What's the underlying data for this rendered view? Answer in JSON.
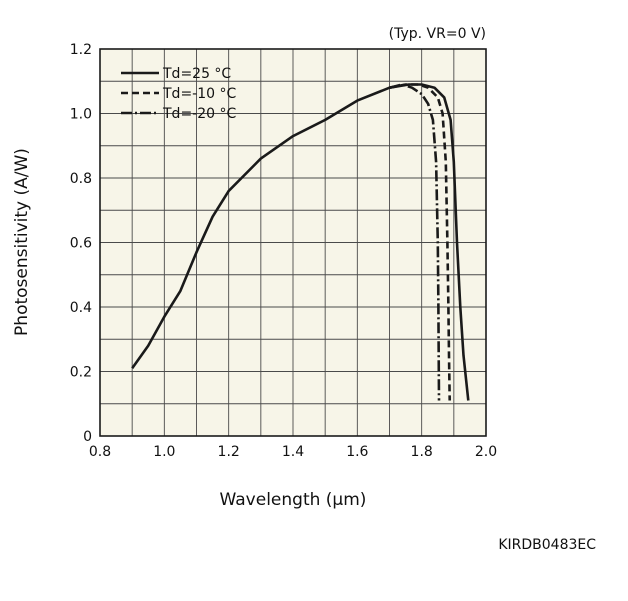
{
  "chart_data": {
    "type": "line",
    "condition_text": "(Typ. VR=0 V)",
    "xlabel": "Wavelength (µm)",
    "ylabel": "Photosensitivity (A/W)",
    "xlim": [
      0.8,
      2.0
    ],
    "ylim": [
      0,
      1.2
    ],
    "grid": true,
    "legend_position": "top-left",
    "x_tick_labels": [
      "0.8",
      "1.0",
      "1.2",
      "1.4",
      "1.6",
      "1.8",
      "2.0"
    ],
    "y_tick_labels": [
      "0",
      "0.2",
      "0.4",
      "0.6",
      "0.8",
      "1.0",
      "1.2"
    ],
    "colors": {
      "background": "#f7f5e8",
      "grid": "#4a4a4a",
      "line": "#1a1a1a"
    },
    "series": [
      {
        "name": "Td=25 °C",
        "style": "solid",
        "points": [
          [
            0.9,
            0.21
          ],
          [
            0.95,
            0.28
          ],
          [
            1.0,
            0.37
          ],
          [
            1.05,
            0.45
          ],
          [
            1.1,
            0.57
          ],
          [
            1.15,
            0.68
          ],
          [
            1.2,
            0.76
          ],
          [
            1.3,
            0.86
          ],
          [
            1.4,
            0.93
          ],
          [
            1.5,
            0.98
          ],
          [
            1.6,
            1.04
          ],
          [
            1.7,
            1.08
          ],
          [
            1.76,
            1.09
          ],
          [
            1.8,
            1.09
          ],
          [
            1.84,
            1.08
          ],
          [
            1.87,
            1.05
          ],
          [
            1.89,
            0.98
          ],
          [
            1.9,
            0.85
          ],
          [
            1.91,
            0.6
          ],
          [
            1.92,
            0.4
          ],
          [
            1.93,
            0.25
          ],
          [
            1.945,
            0.11
          ]
        ]
      },
      {
        "name": "Td=-10 °C",
        "style": "dashed",
        "points": [
          [
            1.7,
            1.08
          ],
          [
            1.75,
            1.09
          ],
          [
            1.79,
            1.09
          ],
          [
            1.82,
            1.08
          ],
          [
            1.85,
            1.05
          ],
          [
            1.865,
            1.0
          ],
          [
            1.875,
            0.85
          ],
          [
            1.88,
            0.6
          ],
          [
            1.883,
            0.4
          ],
          [
            1.885,
            0.25
          ],
          [
            1.887,
            0.11
          ]
        ]
      },
      {
        "name": "Td=-20 °C",
        "style": "dashdot",
        "points": [
          [
            1.7,
            1.08
          ],
          [
            1.74,
            1.09
          ],
          [
            1.77,
            1.08
          ],
          [
            1.8,
            1.06
          ],
          [
            1.82,
            1.03
          ],
          [
            1.835,
            0.98
          ],
          [
            1.845,
            0.85
          ],
          [
            1.85,
            0.6
          ],
          [
            1.852,
            0.4
          ],
          [
            1.853,
            0.25
          ],
          [
            1.854,
            0.11
          ]
        ]
      }
    ]
  },
  "footer": {
    "code": "KIRDB0483EC"
  }
}
